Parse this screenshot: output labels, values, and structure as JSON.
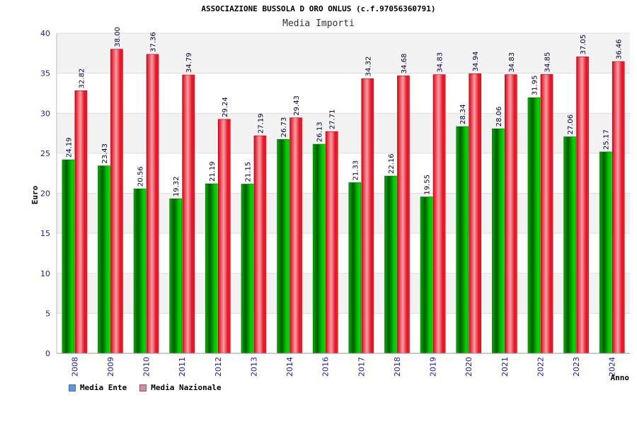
{
  "chart_data": {
    "type": "bar",
    "title": "ASSOCIAZIONE BUSSOLA D ORO ONLUS (c.f.97056360791)",
    "subtitle": "Media Importi",
    "xlabel": "Anno",
    "ylabel": "Euro",
    "ylim": [
      0,
      40
    ],
    "yticks": [
      0,
      5,
      10,
      15,
      20,
      25,
      30,
      35,
      40
    ],
    "categories": [
      "2008",
      "2009",
      "2010",
      "2011",
      "2012",
      "2013",
      "2014",
      "2016",
      "2017",
      "2018",
      "2019",
      "2020",
      "2021",
      "2022",
      "2023",
      "2024"
    ],
    "series": [
      {
        "name": "Media Ente",
        "color": "#00aa00",
        "legend_color": "#5599ee",
        "values": [
          24.19,
          23.43,
          20.56,
          19.32,
          21.19,
          21.15,
          26.73,
          26.13,
          21.33,
          22.16,
          19.55,
          28.34,
          28.06,
          31.95,
          27.06,
          25.17
        ]
      },
      {
        "name": "Media Nazionale",
        "color": "#ee1122",
        "legend_color": "#dd88aa",
        "values": [
          32.82,
          38.0,
          37.36,
          34.79,
          29.24,
          27.19,
          29.43,
          27.71,
          34.32,
          34.68,
          34.83,
          34.94,
          34.83,
          34.85,
          37.05,
          36.46
        ]
      }
    ],
    "data_labels": [
      [
        "24.19",
        "23.43",
        "20.56",
        "19.32",
        "21.19",
        "21.15",
        "26.73",
        "26.13",
        "21.33",
        "22.16",
        "19.55",
        "28.34",
        "28.06",
        "31.95",
        "27.06",
        "25.17"
      ],
      [
        "32.82",
        "38.00",
        "37.36",
        "34.79",
        "29.24",
        "27.19",
        "29.43",
        "27.71",
        "34.32",
        "34.68",
        "34.83",
        "34.94",
        "34.83",
        "34.85",
        "37.05",
        "36.46"
      ]
    ],
    "grid": true,
    "legend_position": "bottom-left"
  }
}
